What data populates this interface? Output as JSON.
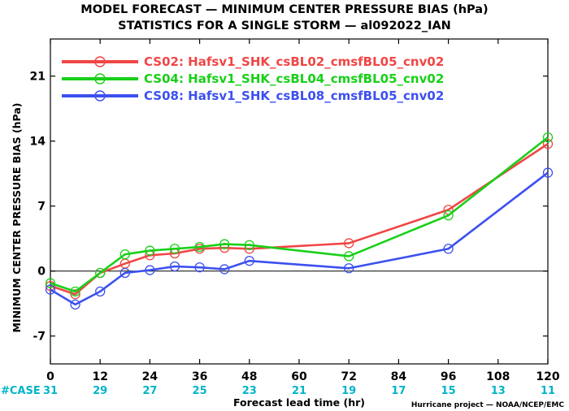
{
  "chart_data": {
    "type": "line",
    "title": "MODEL FORECAST — MINIMUM CENTER PRESSURE BIAS (hPa)",
    "subtitle": "STATISTICS FOR A SINGLE STORM — al092022_IAN",
    "xlabel": "Forecast lead time (hr)",
    "ylabel": "MINIMUM CENTER PRESSURE BIAS (hPa)",
    "xlim": [
      0,
      120
    ],
    "ylim": [
      -10,
      25
    ],
    "xticks": [
      0,
      12,
      24,
      36,
      48,
      60,
      72,
      84,
      96,
      108,
      120
    ],
    "yticks": [
      -7,
      0,
      7,
      14,
      21
    ],
    "zero_line": true,
    "grid": false,
    "legend_position": "top-left",
    "case_label": "#CASE",
    "case_counts": [
      31,
      29,
      27,
      25,
      23,
      21,
      19,
      17,
      15,
      13,
      11
    ],
    "case_color": "#00b4c8",
    "credit": "Hurricane project — NOAA/NCEP/EMC",
    "series": [
      {
        "name": "CS02: Hafsv1_SHK_csBL02_cmsfBL05_cnv02",
        "color": "#f04646",
        "x": [
          0,
          6,
          12,
          18,
          24,
          30,
          36,
          42,
          48,
          72,
          96,
          120
        ],
        "values": [
          -1.6,
          -2.5,
          -0.2,
          0.8,
          1.7,
          1.9,
          2.4,
          2.5,
          2.4,
          3.0,
          6.6,
          13.7
        ]
      },
      {
        "name": "CS04: Hafsv1_SHK_csBL04_cmsfBL05_cnv02",
        "color": "#18d018",
        "x": [
          0,
          6,
          12,
          18,
          24,
          30,
          36,
          42,
          48,
          72,
          96,
          120
        ],
        "values": [
          -1.3,
          -2.2,
          -0.2,
          1.8,
          2.2,
          2.4,
          2.6,
          2.9,
          2.8,
          1.6,
          6.0,
          14.4
        ]
      },
      {
        "name": "CS08: Hafsv1_SHK_csBL08_cmsfBL05_cnv02",
        "color": "#3c50f0",
        "x": [
          0,
          6,
          12,
          18,
          24,
          30,
          36,
          42,
          48,
          72,
          96,
          120
        ],
        "values": [
          -2.0,
          -3.6,
          -2.2,
          -0.2,
          0.1,
          0.5,
          0.4,
          0.2,
          1.1,
          0.3,
          2.4,
          10.6
        ]
      }
    ]
  }
}
